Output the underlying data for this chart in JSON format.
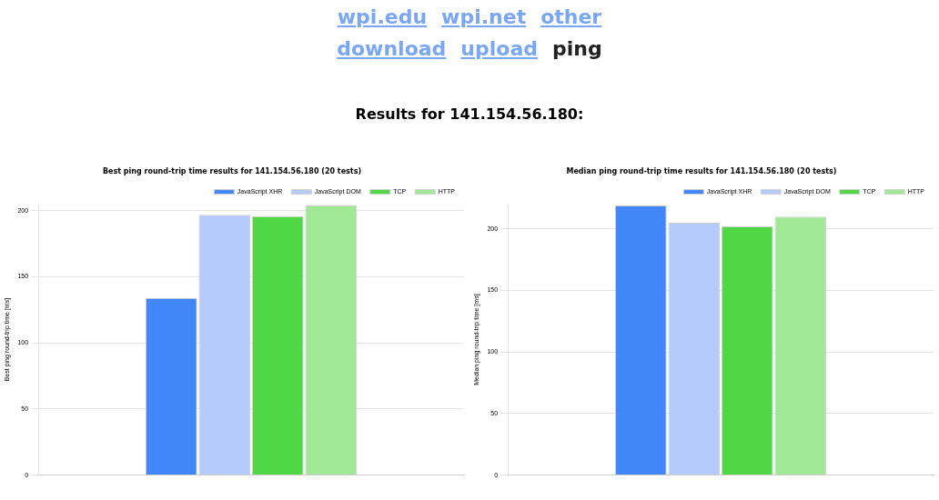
{
  "chart_data": [
    {
      "type": "other",
      "title": "Results for 141.154.56.180:",
      "annotations": [
        "wpi.edu",
        "wpi.net",
        "other",
        "download",
        "upload",
        "ping"
      ]
    },
    {
      "type": "bar",
      "title": "Best ping round-trip time results for 141.154.56.180 (20 tests)",
      "ylabel": "Best ping round-trip time [ms]",
      "categories": [
        null
      ],
      "series": [
        {
          "name": "JavaScript XHR",
          "color": "#4287fa",
          "values": [
            134
          ]
        },
        {
          "name": "JavaScript DOM",
          "color": "#b5cbfb",
          "values": [
            197
          ]
        },
        {
          "name": "TCP",
          "color": "#50d746",
          "values": [
            196
          ]
        },
        {
          "name": "HTTP",
          "color": "#a0e895",
          "values": [
            204
          ]
        }
      ],
      "ylim": [
        0,
        205
      ],
      "yticks": [
        0,
        50,
        100,
        150,
        200
      ],
      "grid": "y",
      "legend": "top right"
    },
    {
      "type": "bar",
      "title": "Median ping round-trip time results for 141.154.56.180 (20 tests)",
      "ylabel": "Median ping round-trip time [ms]",
      "categories": [
        null
      ],
      "series": [
        {
          "name": "JavaScript XHR",
          "color": "#4287fa",
          "values": [
            219
          ]
        },
        {
          "name": "JavaScript DOM",
          "color": "#b5cbfb",
          "values": [
            205
          ]
        },
        {
          "name": "TCP",
          "color": "#50d746",
          "values": [
            202
          ]
        },
        {
          "name": "HTTP",
          "color": "#a0e895",
          "values": [
            210
          ]
        }
      ],
      "ylim": [
        0,
        220
      ],
      "yticks": [
        0,
        50,
        100,
        150,
        200
      ],
      "grid": "y",
      "legend": "top right"
    }
  ]
}
